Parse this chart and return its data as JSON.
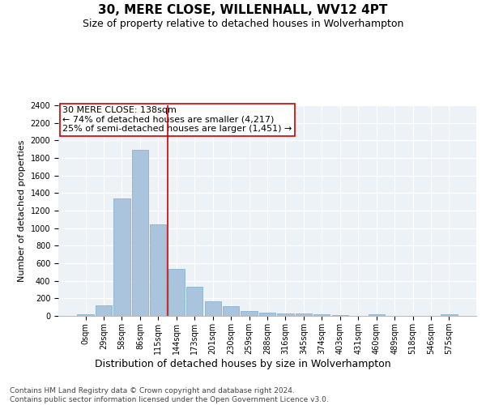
{
  "title": "30, MERE CLOSE, WILLENHALL, WV12 4PT",
  "subtitle": "Size of property relative to detached houses in Wolverhampton",
  "xlabel": "Distribution of detached houses by size in Wolverhampton",
  "ylabel": "Number of detached properties",
  "categories": [
    "0sqm",
    "29sqm",
    "58sqm",
    "86sqm",
    "115sqm",
    "144sqm",
    "173sqm",
    "201sqm",
    "230sqm",
    "259sqm",
    "288sqm",
    "316sqm",
    "345sqm",
    "374sqm",
    "403sqm",
    "431sqm",
    "460sqm",
    "489sqm",
    "518sqm",
    "546sqm",
    "575sqm"
  ],
  "values": [
    15,
    120,
    1340,
    1890,
    1040,
    540,
    335,
    165,
    110,
    60,
    40,
    30,
    28,
    20,
    10,
    0,
    20,
    0,
    0,
    0,
    15
  ],
  "bar_color": "#aac4de",
  "bar_edge_color": "#7aaac8",
  "vline_x_index": 4.5,
  "vline_color": "#cc0000",
  "annotation_text": "30 MERE CLOSE: 138sqm\n← 74% of detached houses are smaller (4,217)\n25% of semi-detached houses are larger (1,451) →",
  "annotation_box_color": "#ffffff",
  "annotation_box_edge_color": "#cc0000",
  "ylim": [
    0,
    2400
  ],
  "yticks": [
    0,
    200,
    400,
    600,
    800,
    1000,
    1200,
    1400,
    1600,
    1800,
    2000,
    2200,
    2400
  ],
  "background_color": "#edf2f7",
  "grid_color": "#ffffff",
  "footer": "Contains HM Land Registry data © Crown copyright and database right 2024.\nContains public sector information licensed under the Open Government Licence v3.0.",
  "title_fontsize": 11,
  "subtitle_fontsize": 9,
  "xlabel_fontsize": 9,
  "ylabel_fontsize": 8,
  "tick_fontsize": 7,
  "annotation_fontsize": 8,
  "footer_fontsize": 6.5
}
